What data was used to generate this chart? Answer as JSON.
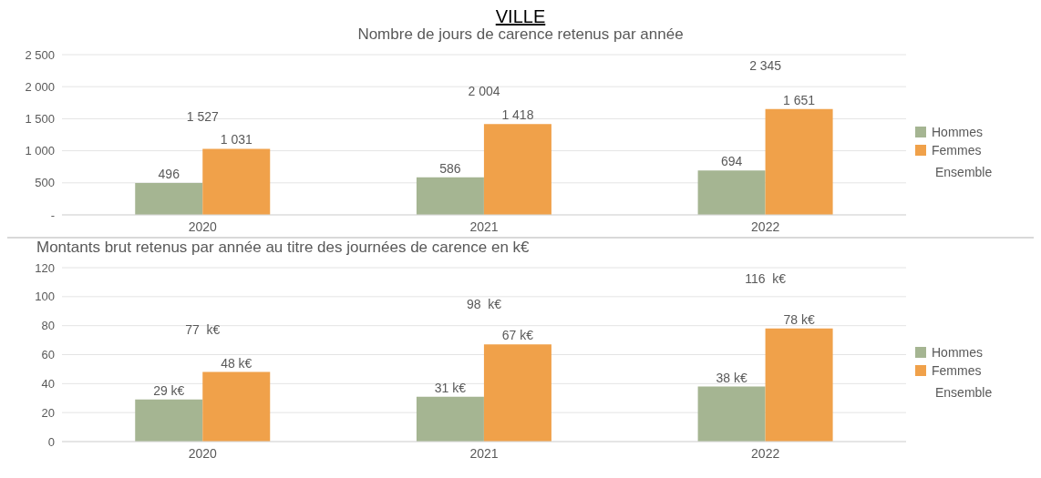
{
  "chart_data": [
    {
      "type": "bar",
      "title": "VILLE",
      "subtitle": "Nombre de jours de carence retenus par année",
      "categories": [
        "2020",
        "2021",
        "2022"
      ],
      "series": [
        {
          "name": "Hommes",
          "color": "#a5b592",
          "values": [
            496,
            586,
            694
          ],
          "value_labels": [
            "496",
            "586",
            "694"
          ]
        },
        {
          "name": "Femmes",
          "color": "#f0a14a",
          "values": [
            1031,
            1418,
            1651
          ],
          "value_labels": [
            "1 031",
            "1 418",
            "1 651"
          ]
        }
      ],
      "ylim": [
        0,
        2500
      ],
      "yticks": [
        {
          "value": 0,
          "label": "-"
        },
        {
          "value": 500,
          "label": "500"
        },
        {
          "value": 1000,
          "label": "1 000"
        },
        {
          "value": 1500,
          "label": "1 500"
        },
        {
          "value": 2000,
          "label": "2 000"
        },
        {
          "value": 2500,
          "label": "2 500"
        }
      ],
      "grid": "y",
      "legend": "right",
      "annotations": [
        "1 527",
        "2 004",
        "2 345",
        "Ensemble"
      ]
    },
    {
      "type": "bar",
      "title": "Montants brut retenus par année au titre des journées de carence en k€",
      "categories": [
        "2020",
        "2021",
        "2022"
      ],
      "series": [
        {
          "name": "Hommes",
          "color": "#a5b592",
          "values": [
            29,
            31,
            38
          ],
          "value_labels": [
            "29  k€",
            "31  k€",
            "38  k€"
          ]
        },
        {
          "name": "Femmes",
          "color": "#f0a14a",
          "values": [
            48,
            67,
            78
          ],
          "value_labels": [
            "48 k€",
            "67 k€",
            "78 k€"
          ]
        }
      ],
      "ylim": [
        0,
        120
      ],
      "yticks": [
        0,
        20,
        40,
        60,
        80,
        100,
        120
      ],
      "grid": "y",
      "legend": "right",
      "annotations": [
        "77  k€",
        "98  k€",
        "116  k€",
        "Ensemble"
      ]
    }
  ]
}
